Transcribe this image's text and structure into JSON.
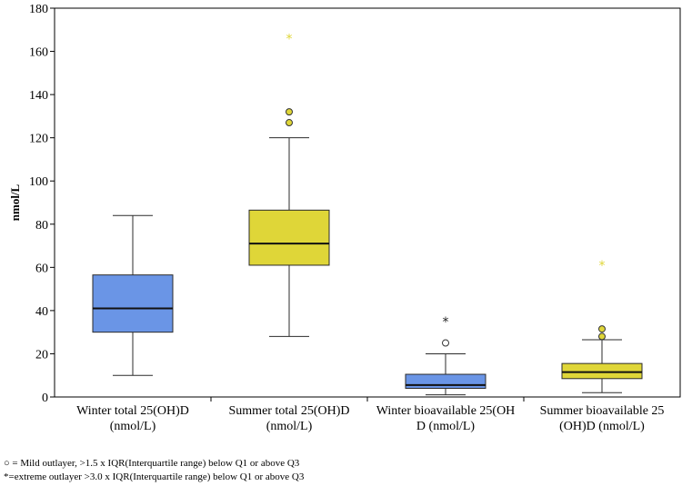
{
  "chart_data": {
    "type": "box",
    "ylabel": "nmol/L",
    "xlabel": "",
    "ylim": [
      0,
      180
    ],
    "yticks": [
      0,
      20,
      40,
      60,
      80,
      100,
      120,
      140,
      160,
      180
    ],
    "grid": false,
    "colors": {
      "winter": "#6a95e6",
      "summer": "#dfd638",
      "outline": "#2b2b2b"
    },
    "categories": [
      {
        "label_lines": [
          "Winter total 25(OH)D",
          "(nmol/L)"
        ],
        "color": "#6a95e6",
        "whisker_low": 10,
        "q1": 30,
        "median": 41,
        "q3": 56.5,
        "whisker_high": 84,
        "mild_outliers": [],
        "extreme_outliers": []
      },
      {
        "label_lines": [
          "Summer total 25(OH)D",
          "(nmol/L)"
        ],
        "color": "#dfd638",
        "whisker_low": 28,
        "q1": 61,
        "median": 71,
        "q3": 86.5,
        "whisker_high": 120,
        "mild_outliers": [
          127,
          132
        ],
        "extreme_outliers": [
          166
        ]
      },
      {
        "label_lines": [
          "Winter bioavailable 25(OH",
          "D (nmol/L)"
        ],
        "color": "#6a95e6",
        "whisker_low": 1,
        "q1": 4,
        "median": 5.5,
        "q3": 10.5,
        "whisker_high": 20,
        "mild_outliers": [
          25
        ],
        "extreme_outliers": [
          35
        ]
      },
      {
        "label_lines": [
          "Summer bioavailable 25",
          "(OH)D (nmol/L)"
        ],
        "color": "#dfd638",
        "whisker_low": 2,
        "q1": 8.5,
        "median": 11.5,
        "q3": 15.5,
        "whisker_high": 26.5,
        "mild_outliers": [
          28,
          31.5
        ],
        "extreme_outliers": [
          61
        ]
      }
    ]
  },
  "footnotes": {
    "mild": "○ = Mild outlayer, >1.5 x IQR(Interquartile range) below Q1 or above Q3",
    "extreme": "*=extreme outlayer >3.0 x IQR(Interquartile range) below Q1 or above Q3"
  }
}
